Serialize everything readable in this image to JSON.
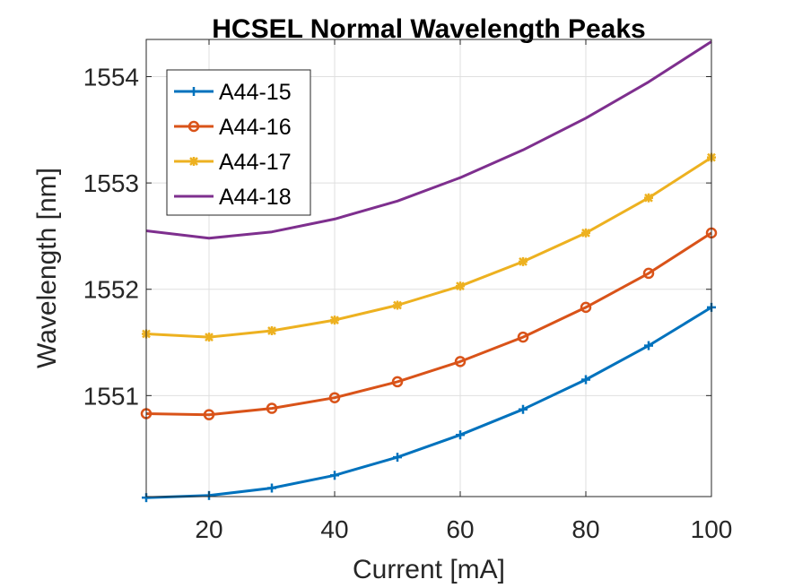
{
  "chart_data": {
    "type": "line",
    "title": "HCSEL Normal Wavelength Peaks",
    "xlabel": "Current [mA]",
    "ylabel": "Wavelength [nm]",
    "xlim": [
      10,
      100
    ],
    "ylim": [
      1550.05,
      1554.35
    ],
    "xticks": [
      20,
      40,
      60,
      80,
      100
    ],
    "yticks": [
      1551,
      1552,
      1553,
      1554
    ],
    "grid": true,
    "legend_position": "top-left",
    "x": [
      10,
      20,
      30,
      40,
      50,
      60,
      70,
      80,
      90,
      100
    ],
    "series": [
      {
        "name": "A44-15",
        "color": "#0072BD",
        "marker": "plus",
        "values": [
          1550.04,
          1550.06,
          1550.13,
          1550.25,
          1550.42,
          1550.63,
          1550.87,
          1551.15,
          1551.47,
          1551.83
        ]
      },
      {
        "name": "A44-16",
        "color": "#D95319",
        "marker": "circle",
        "values": [
          1550.83,
          1550.82,
          1550.88,
          1550.98,
          1551.13,
          1551.32,
          1551.55,
          1551.83,
          1552.15,
          1552.53
        ]
      },
      {
        "name": "A44-17",
        "color": "#EDB120",
        "marker": "asterisk",
        "values": [
          1551.58,
          1551.55,
          1551.61,
          1551.71,
          1551.85,
          1552.03,
          1552.26,
          1552.53,
          1552.86,
          1553.24
        ]
      },
      {
        "name": "A44-18",
        "color": "#7E2F8E",
        "marker": "none",
        "values": [
          1552.55,
          1552.48,
          1552.54,
          1552.66,
          1552.83,
          1553.05,
          1553.31,
          1553.61,
          1553.95,
          1554.33
        ]
      }
    ]
  }
}
